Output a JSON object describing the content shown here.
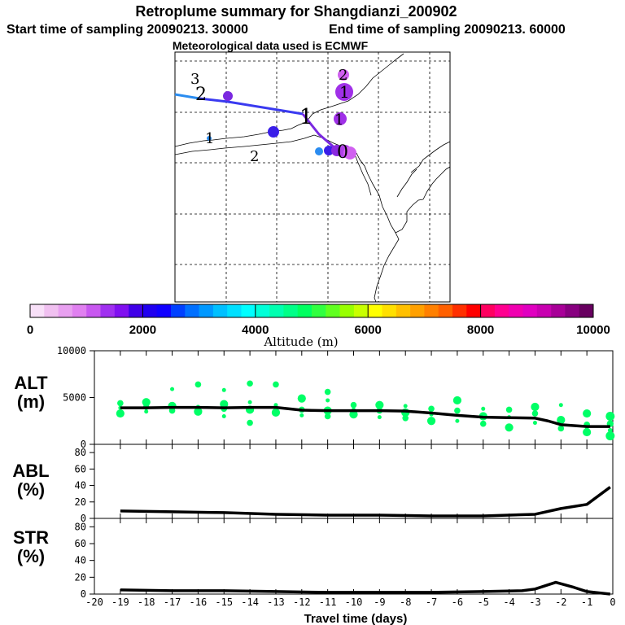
{
  "header": {
    "title": "Retroplume summary for Shangdianzi_200902",
    "start_label": "Start time of sampling 20090213. 30000",
    "end_label": "End time of sampling 20090213. 60000",
    "met_label": "Meteorological data used is ECMWF"
  },
  "map": {
    "plume_labels": [
      "3",
      "2",
      "1",
      "1",
      "2",
      "2",
      "1",
      "1",
      "0"
    ],
    "track_colors": {
      "early": "#2a8cf0",
      "mid": "#3a3af0",
      "late": "#7a28e0"
    }
  },
  "colorbar": {
    "colors": [
      "#f8e0f8",
      "#f0c0f0",
      "#e8a0f0",
      "#e080f0",
      "#c858f0",
      "#a030f0",
      "#8010f0",
      "#4000e8",
      "#2000f0",
      "#1000ff",
      "#0040ff",
      "#0070ff",
      "#0098ff",
      "#00c0ff",
      "#00e0ff",
      "#00ffff",
      "#00ffd8",
      "#00ffb0",
      "#00ff88",
      "#00ff60",
      "#30ff40",
      "#60ff20",
      "#98ff00",
      "#c8ff00",
      "#ffff00",
      "#ffe000",
      "#ffc000",
      "#ffa000",
      "#ff8000",
      "#ff6000",
      "#ff3000",
      "#ff0000",
      "#ff0060",
      "#ff0090",
      "#f000b0",
      "#e000c0",
      "#c800b0",
      "#a80098",
      "#880080",
      "#680060"
    ],
    "tick_labels": [
      "0",
      "2000",
      "4000",
      "6000",
      "8000",
      "10000"
    ],
    "title": "Altitude (m)"
  },
  "panel_labels": {
    "alt": [
      "ALT",
      "(m)"
    ],
    "abl": [
      "ABL",
      "(%)"
    ],
    "str": [
      "STR",
      "(%)"
    ]
  },
  "chart_data": [
    {
      "type": "line",
      "panel": "ALT",
      "ylabel": "ALT (m)",
      "ylim": [
        0,
        10000
      ],
      "yticks": [
        0,
        5000,
        10000
      ],
      "x": [
        -19,
        -18,
        -17,
        -16,
        -15,
        -14,
        -13,
        -12,
        -11,
        -10,
        -9,
        -8,
        -7,
        -6,
        -5,
        -4,
        -3,
        -2.5,
        -2,
        -1,
        -0.1
      ],
      "series": [
        {
          "name": "mean altitude",
          "values": [
            3900,
            3900,
            3950,
            3950,
            3900,
            3950,
            3950,
            3650,
            3600,
            3600,
            3600,
            3550,
            3350,
            3100,
            2900,
            2850,
            2800,
            2500,
            2100,
            1900,
            1900
          ]
        }
      ],
      "scatter_clusters": [
        {
          "x": -19,
          "values": [
            3300,
            3900,
            4400
          ]
        },
        {
          "x": -18,
          "values": [
            3500,
            4000,
            4500
          ]
        },
        {
          "x": -17,
          "values": [
            3600,
            4100,
            5900
          ]
        },
        {
          "x": -16,
          "values": [
            3500,
            4000,
            6400
          ]
        },
        {
          "x": -15,
          "values": [
            3000,
            3800,
            4300,
            5800
          ]
        },
        {
          "x": -14,
          "values": [
            2300,
            3700,
            4500,
            6500
          ]
        },
        {
          "x": -13,
          "values": [
            3400,
            4200,
            6400
          ]
        },
        {
          "x": -12,
          "values": [
            3100,
            3700,
            4900
          ]
        },
        {
          "x": -11,
          "values": [
            3000,
            3600,
            4700,
            5600
          ]
        },
        {
          "x": -10,
          "values": [
            3200,
            3700,
            4200
          ]
        },
        {
          "x": -9,
          "values": [
            2900,
            3600,
            4200
          ]
        },
        {
          "x": -8,
          "values": [
            2800,
            3400,
            4100
          ]
        },
        {
          "x": -7,
          "values": [
            2500,
            3200,
            3800
          ]
        },
        {
          "x": -6,
          "values": [
            2500,
            3600,
            4700
          ]
        },
        {
          "x": -5,
          "values": [
            2200,
            3000,
            3800
          ]
        },
        {
          "x": -4,
          "values": [
            1800,
            2900,
            3700
          ]
        },
        {
          "x": -3,
          "values": [
            2300,
            3300,
            4000
          ]
        },
        {
          "x": -2,
          "values": [
            1700,
            2600,
            4200
          ]
        },
        {
          "x": -1,
          "values": [
            1300,
            1800,
            2100,
            3300
          ]
        },
        {
          "x": -0.1,
          "values": [
            900,
            1500,
            2200,
            3000
          ]
        }
      ]
    },
    {
      "type": "line",
      "panel": "ABL",
      "ylabel": "ABL (%)",
      "ylim": [
        0,
        90
      ],
      "yticks": [
        0,
        20,
        40,
        60,
        80
      ],
      "x": [
        -19,
        -17,
        -15,
        -13,
        -11,
        -9,
        -7,
        -5,
        -3,
        -2,
        -1,
        -0.1
      ],
      "series": [
        {
          "name": "ABL fraction",
          "values": [
            9,
            8,
            7,
            5,
            4,
            4,
            3,
            3,
            5,
            12,
            17,
            38
          ]
        }
      ]
    },
    {
      "type": "line",
      "panel": "STR",
      "ylabel": "STR (%)",
      "xlabel": "Travel time (days)",
      "ylim": [
        0,
        90
      ],
      "yticks": [
        0,
        20,
        40,
        60,
        80
      ],
      "xlim": [
        -20,
        0
      ],
      "xticks": [
        "-20",
        "-19",
        "-18",
        "-17",
        "-16",
        "-15",
        "-14",
        "-13",
        "-12",
        "-11",
        "-10",
        "-9",
        "-8",
        "-7",
        "-6",
        "-5",
        "-4",
        "-3",
        "-2",
        "-1",
        "0"
      ],
      "x": [
        -19,
        -17,
        -15,
        -13,
        -11,
        -9,
        -7,
        -5,
        -3.5,
        -3,
        -2.2,
        -1.5,
        -1,
        -0.1
      ],
      "series": [
        {
          "name": "STR fraction",
          "values": [
            5,
            4,
            4,
            3,
            2,
            2,
            2,
            3,
            4,
            6,
            14,
            8,
            3,
            0
          ]
        }
      ]
    }
  ]
}
